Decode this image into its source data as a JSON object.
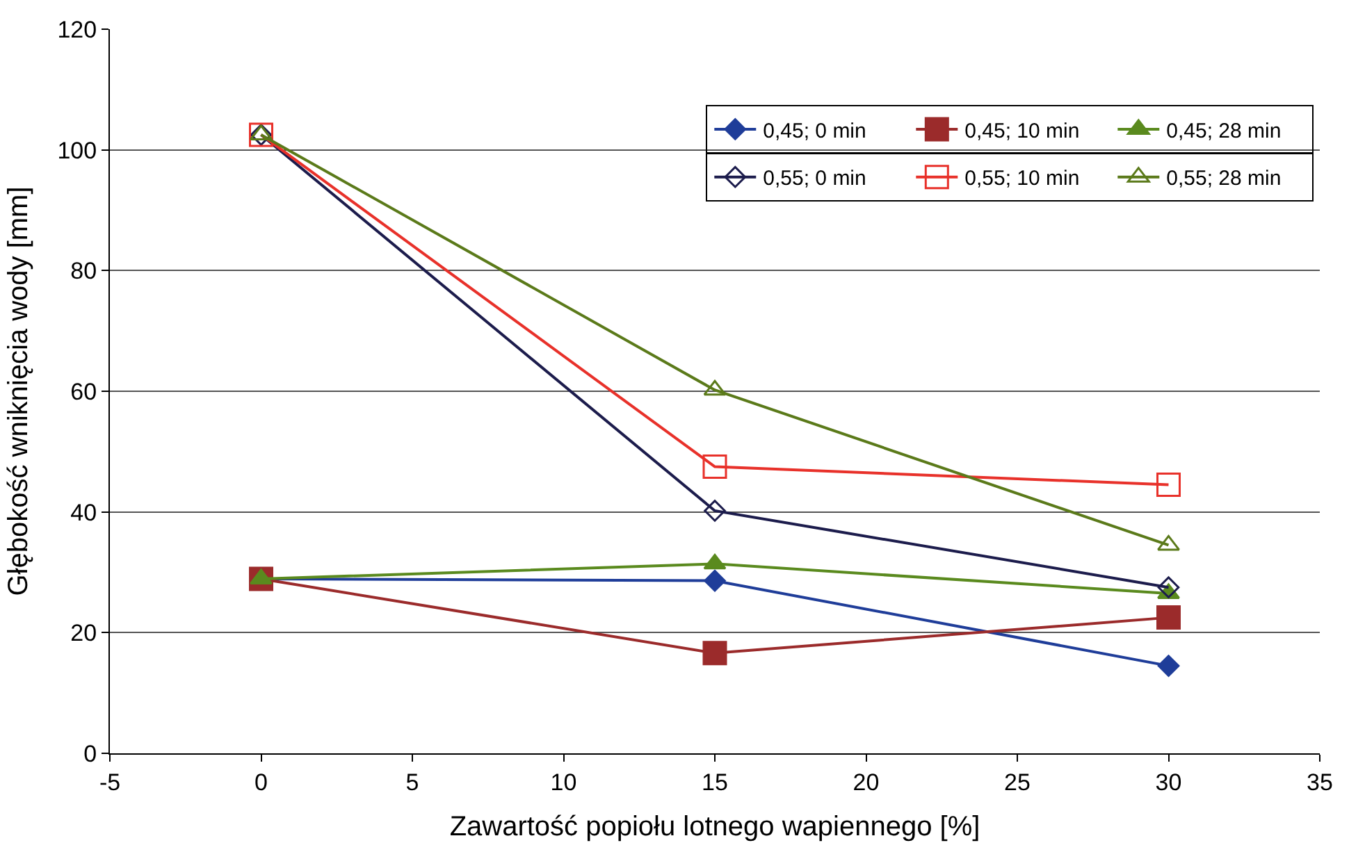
{
  "chart_data": {
    "type": "line",
    "xlabel": "Zawartość popiołu lotnego wapiennego [%]",
    "ylabel": "Głębokość wniknięcia wody [mm]",
    "x": [
      0,
      15,
      30
    ],
    "xlim": [
      -5,
      35
    ],
    "xticks": [
      -5,
      0,
      5,
      10,
      15,
      20,
      25,
      30,
      35
    ],
    "ylim": [
      0,
      120
    ],
    "yticks": [
      0,
      20,
      40,
      60,
      80,
      100,
      120
    ],
    "grid": "y",
    "legend": "top right",
    "series": [
      {
        "name": "0,45; 0 min",
        "color": "#1f3d99",
        "values": [
          28.9,
          28.6,
          14.5
        ],
        "marker": "diamond"
      },
      {
        "name": "0,45; 10 min",
        "color": "#9b2b2b",
        "values": [
          28.9,
          16.6,
          22.5
        ],
        "marker": "square"
      },
      {
        "name": "0,45; 28 min",
        "color": "#5a8a1e",
        "values": [
          28.9,
          31.4,
          26.5
        ],
        "marker": "triangle"
      },
      {
        "name": "0,55; 0 min",
        "color": "#1c1c4c",
        "values": [
          102.5,
          40.2,
          27.5
        ],
        "marker": "diamond-open"
      },
      {
        "name": "0,55; 10 min",
        "color": "#e8312a",
        "values": [
          102.5,
          47.5,
          44.5
        ],
        "marker": "square-open"
      },
      {
        "name": "0,55; 28 min",
        "color": "#5b7a1a",
        "values": [
          102.5,
          60.2,
          34.5
        ],
        "marker": "triangle-open"
      }
    ]
  }
}
